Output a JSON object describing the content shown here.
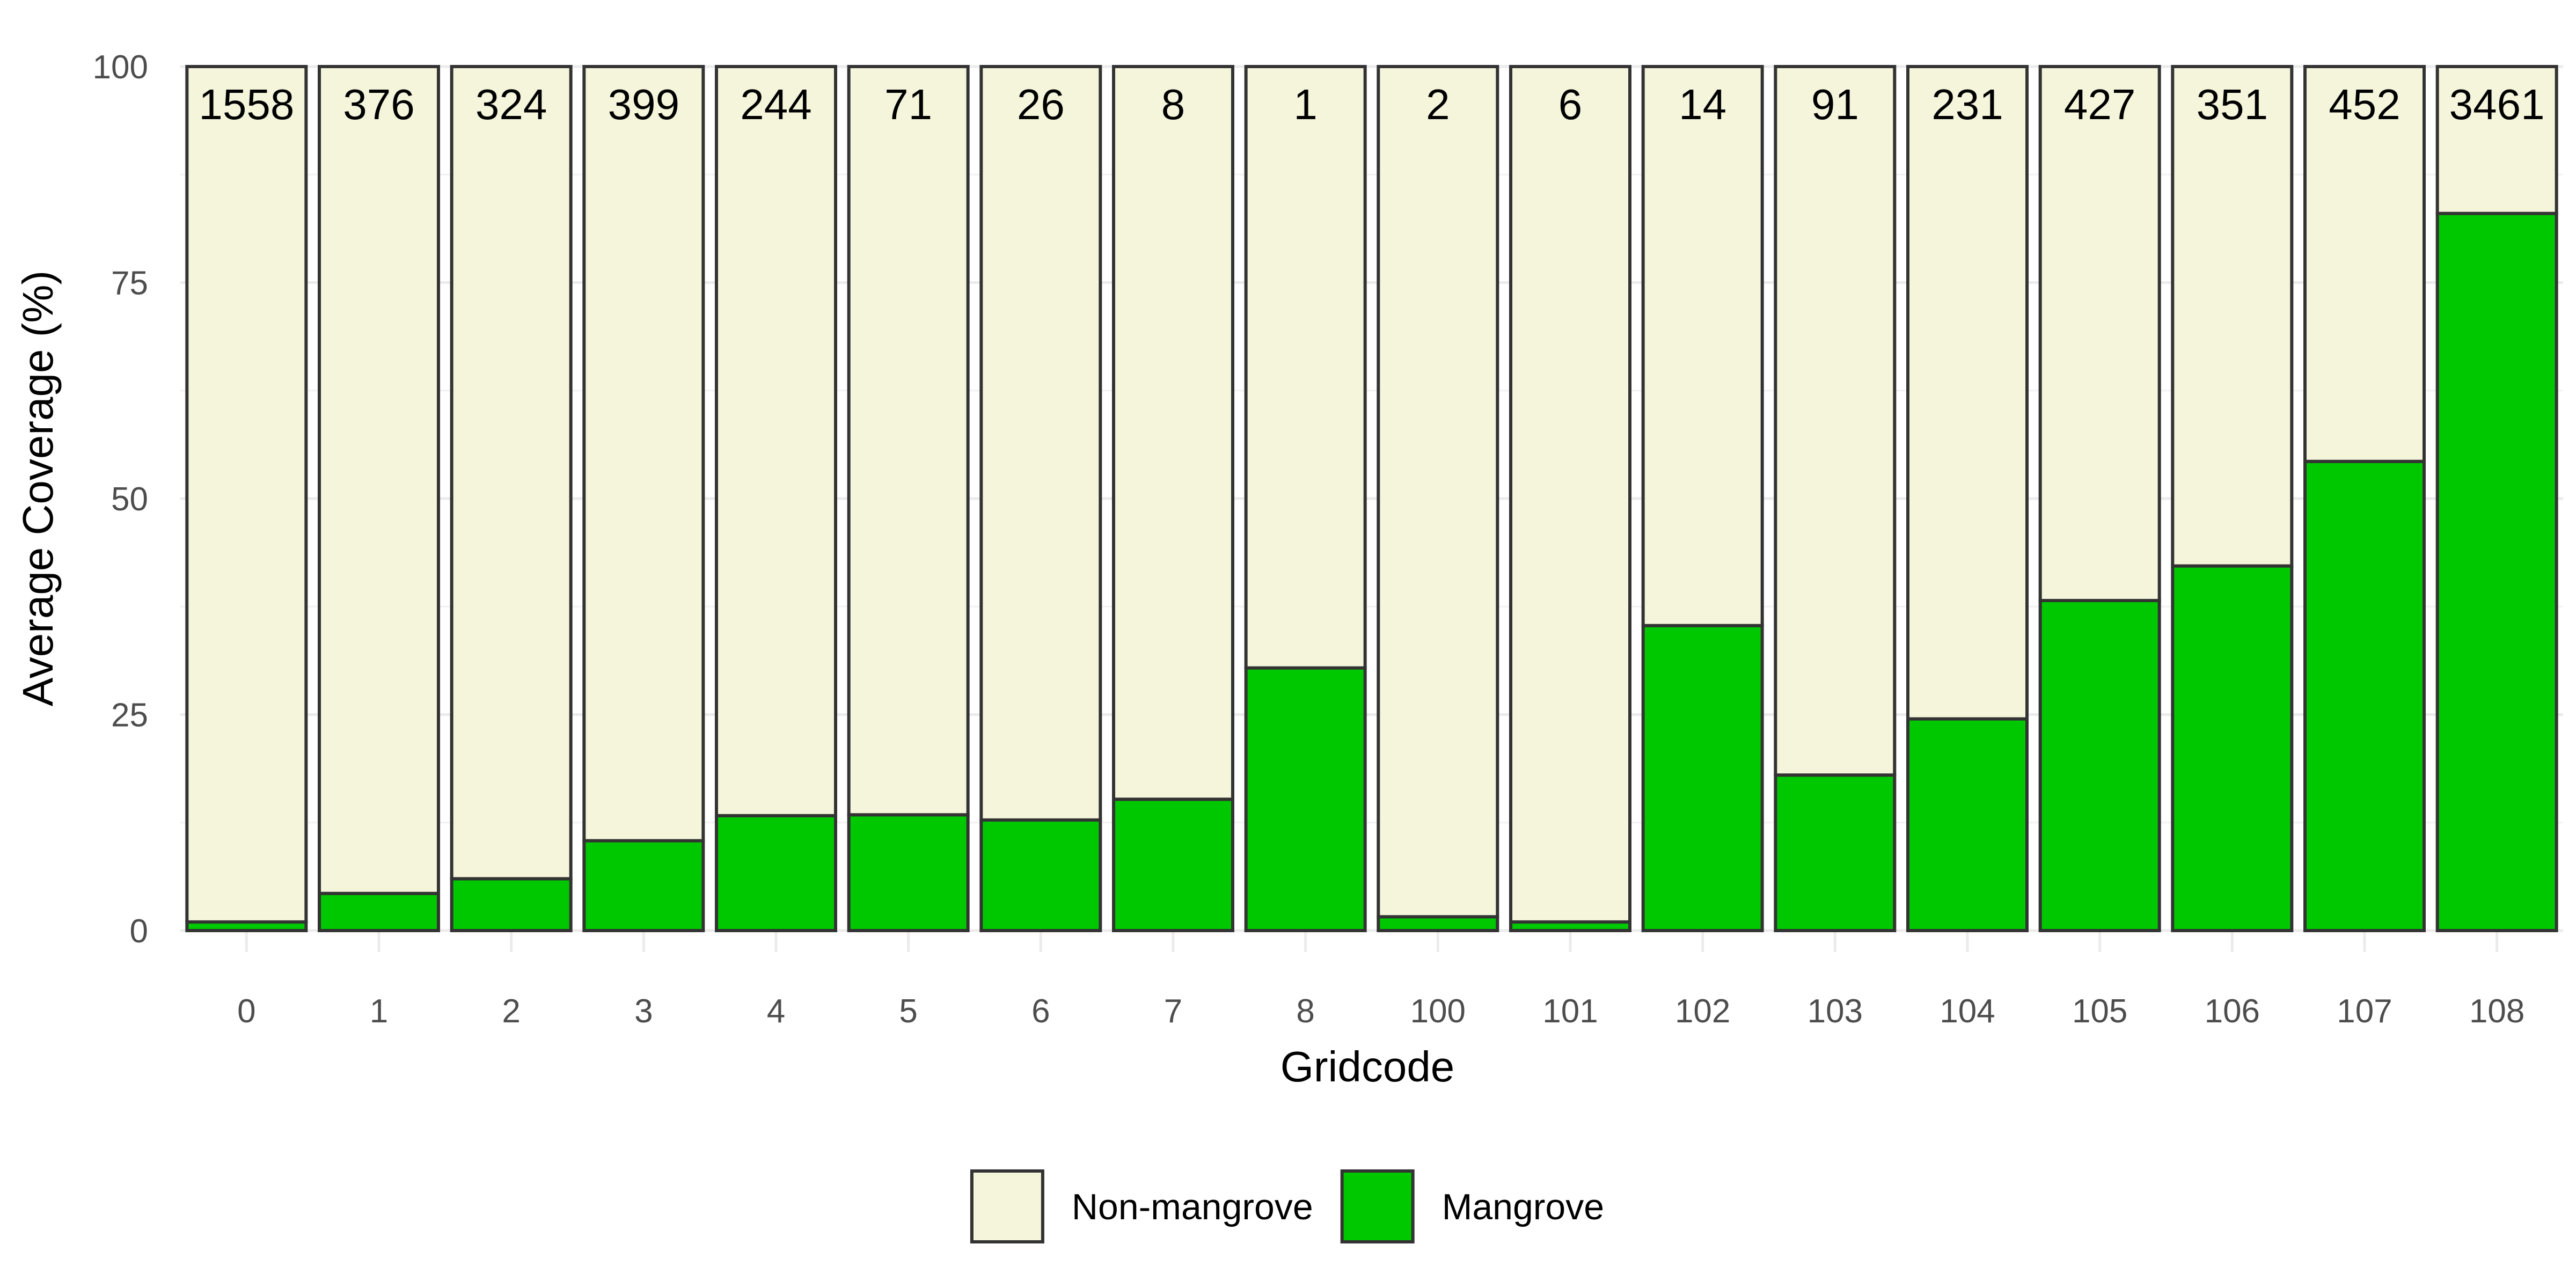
{
  "chart_data": {
    "type": "bar",
    "stacked": true,
    "percent_stacked": true,
    "categories": [
      "0",
      "1",
      "2",
      "3",
      "4",
      "5",
      "6",
      "7",
      "8",
      "100",
      "101",
      "102",
      "103",
      "104",
      "105",
      "106",
      "107",
      "108"
    ],
    "series": [
      {
        "name": "Mangrove",
        "color": "#00c800",
        "values": [
          1.0,
          4.3,
          6.0,
          10.4,
          13.3,
          13.4,
          12.8,
          15.2,
          30.4,
          1.6,
          1.0,
          35.3,
          18.0,
          24.5,
          38.2,
          42.2,
          54.3,
          83.0
        ]
      },
      {
        "name": "Non-mangrove",
        "color": "#f5f5dc",
        "values": [
          99.0,
          95.7,
          94.0,
          89.6,
          86.7,
          86.6,
          87.2,
          84.8,
          69.6,
          98.4,
          99.0,
          64.7,
          82.0,
          75.5,
          61.8,
          57.8,
          45.7,
          17.0
        ]
      }
    ],
    "bar_labels": [
      "1558",
      "376",
      "324",
      "399",
      "244",
      "71",
      "26",
      "8",
      "1",
      "2",
      "6",
      "14",
      "91",
      "231",
      "427",
      "351",
      "452",
      "3461"
    ],
    "xlabel": "Gridcode",
    "ylabel": "Average Coverage (%)",
    "ylim": [
      0,
      100
    ],
    "yticks": [
      "0",
      "25",
      "50",
      "75",
      "100"
    ],
    "grid": true,
    "legend": {
      "position": "bottom",
      "entries": [
        {
          "label": "Non-mangrove",
          "color": "#f5f5dc"
        },
        {
          "label": "Mangrove",
          "color": "#00c800"
        }
      ]
    },
    "bar_outline_color": "#333333"
  }
}
